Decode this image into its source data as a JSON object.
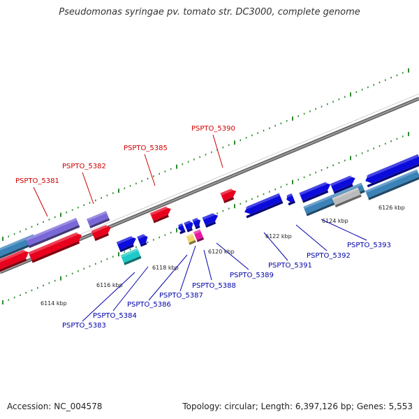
{
  "title": "Pseudomonas syringae pv. tomato str. DC3000, complete genome",
  "footer": {
    "accession": "Accession: NC_004578",
    "summary": "Topology: circular; Length: 6,397,126 bp; Genes: 5,553"
  },
  "colors": {
    "red": "#e8001c",
    "blue": "#0b0bdc",
    "purple": "#7a68d8",
    "teal": "#3a82b8",
    "grey": "#bbbbbb",
    "cyan": "#1ec9c9",
    "green": "#2c8a2c",
    "label_top": "#cc0000",
    "label_bottom": "#0000aa"
  },
  "scale_labels": [
    "6114 kbp",
    "6116 kbp",
    "6118 kbp",
    "6120 kbp",
    "6122 kbp",
    "6124 kbp",
    "6126 kbp"
  ],
  "top_labels": [
    "PSPTO_5381",
    "PSPTO_5382",
    "PSPTO_5385",
    "PSPTO_5390"
  ],
  "bottom_labels": [
    "PSPTO_5383",
    "PSPTO_5384",
    "PSPTO_5386",
    "PSPTO_5387",
    "PSPTO_5388",
    "PSPTO_5389",
    "PSPTO_5391",
    "PSPTO_5392",
    "PSPTO_5393"
  ]
}
